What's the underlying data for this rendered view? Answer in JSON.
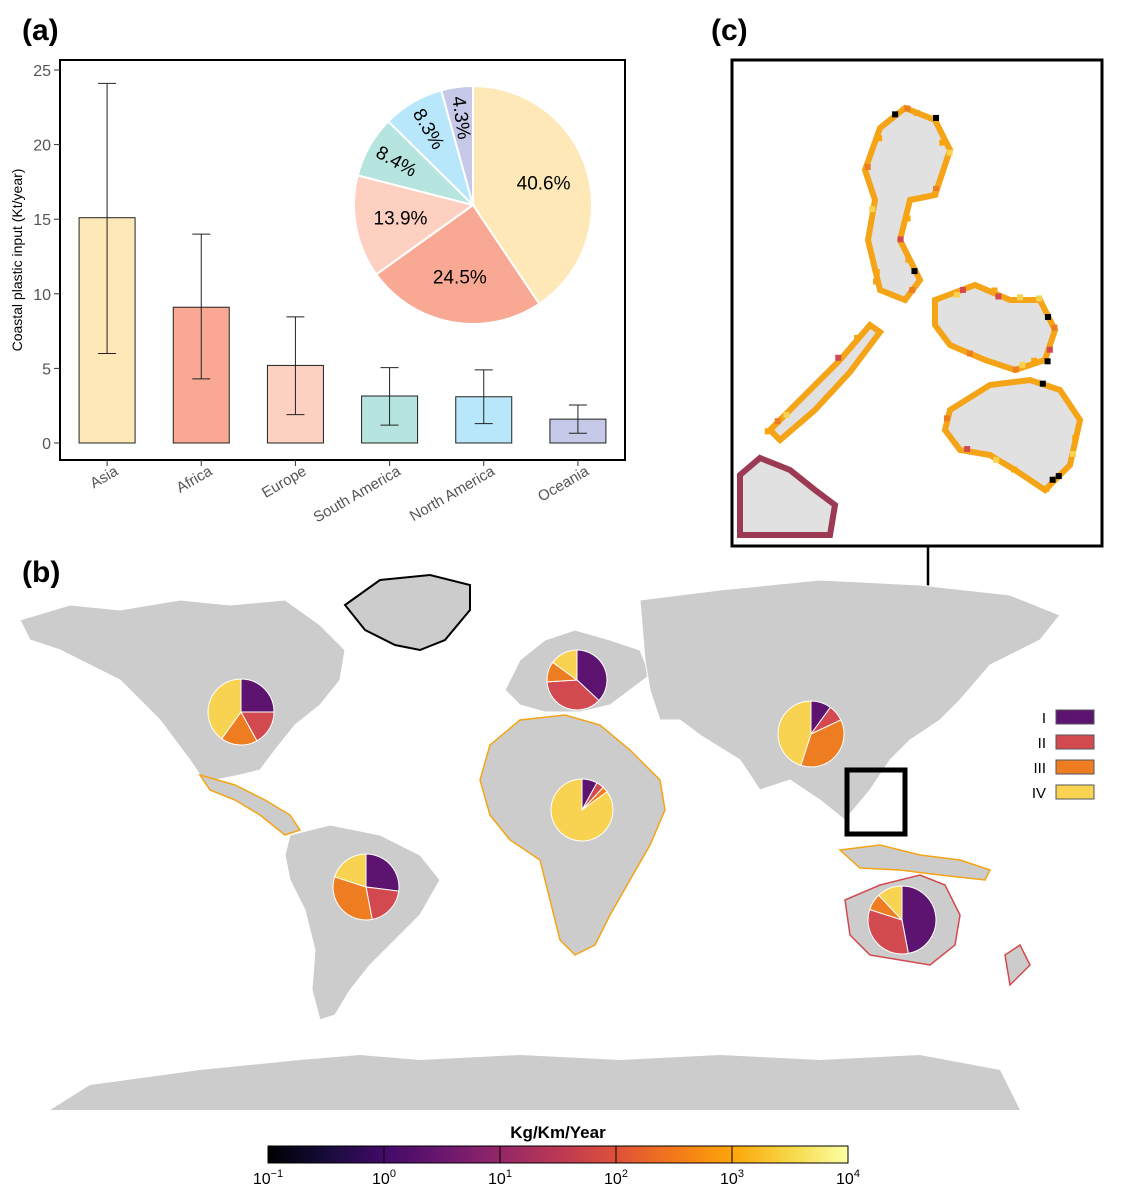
{
  "panel_labels": {
    "a": "(a)",
    "b": "(b)",
    "c": "(c)"
  },
  "chart_data": [
    {
      "type": "bar",
      "panel": "(a)",
      "ylabel": "Coastal plastic input (Kt/year)",
      "ylim": [
        0,
        25
      ],
      "yticks": [
        0,
        5,
        10,
        15,
        20,
        25
      ],
      "categories": [
        "Asia",
        "Africa",
        "Europe",
        "South America",
        "North America",
        "Oceania"
      ],
      "values": [
        15.1,
        9.1,
        5.2,
        3.15,
        3.1,
        1.6
      ],
      "error_low": [
        6.0,
        4.3,
        1.9,
        1.2,
        1.3,
        0.65
      ],
      "error_high": [
        24.1,
        14.0,
        8.45,
        5.05,
        4.9,
        2.55
      ],
      "colors": [
        "#FEE8B8",
        "#F9A993",
        "#FDD0C2",
        "#B6E4DF",
        "#B8E7FB",
        "#C5C8E6"
      ]
    },
    {
      "type": "pie",
      "panel": "(a) inset",
      "labels": [
        "40.6%",
        "24.5%",
        "13.9%",
        "8.4%",
        "8.3%",
        "4.3%"
      ],
      "values": [
        40.6,
        24.5,
        13.9,
        8.4,
        8.3,
        4.3
      ],
      "colors": [
        "#FEE8B8",
        "#F9A993",
        "#FDD0C2",
        "#B6E4DF",
        "#B8E7FB",
        "#C5C8E6"
      ]
    },
    {
      "type": "map-pies",
      "panel": "(b)",
      "legend": [
        "I",
        "II",
        "III",
        "IV"
      ],
      "legend_colors": [
        "#5C1470",
        "#D24A4F",
        "#EE7D22",
        "#F8D352"
      ],
      "regions": [
        {
          "name": "North America",
          "values": [
            25,
            17,
            18,
            40
          ]
        },
        {
          "name": "Europe",
          "values": [
            37,
            37,
            11,
            15
          ]
        },
        {
          "name": "Asia",
          "values": [
            10,
            8,
            37,
            45
          ]
        },
        {
          "name": "Africa",
          "values": [
            8,
            4,
            3,
            85
          ]
        },
        {
          "name": "South America",
          "values": [
            27,
            20,
            33,
            20
          ]
        },
        {
          "name": "Oceania",
          "values": [
            47,
            33,
            8,
            12
          ]
        }
      ]
    },
    {
      "type": "colorbar",
      "title": "Kg/Km/Year",
      "tick_bases": [
        "10",
        "10",
        "10",
        "10",
        "10",
        "10"
      ],
      "tick_exponents": [
        "−1",
        "0",
        "1",
        "2",
        "3",
        "4"
      ]
    }
  ]
}
